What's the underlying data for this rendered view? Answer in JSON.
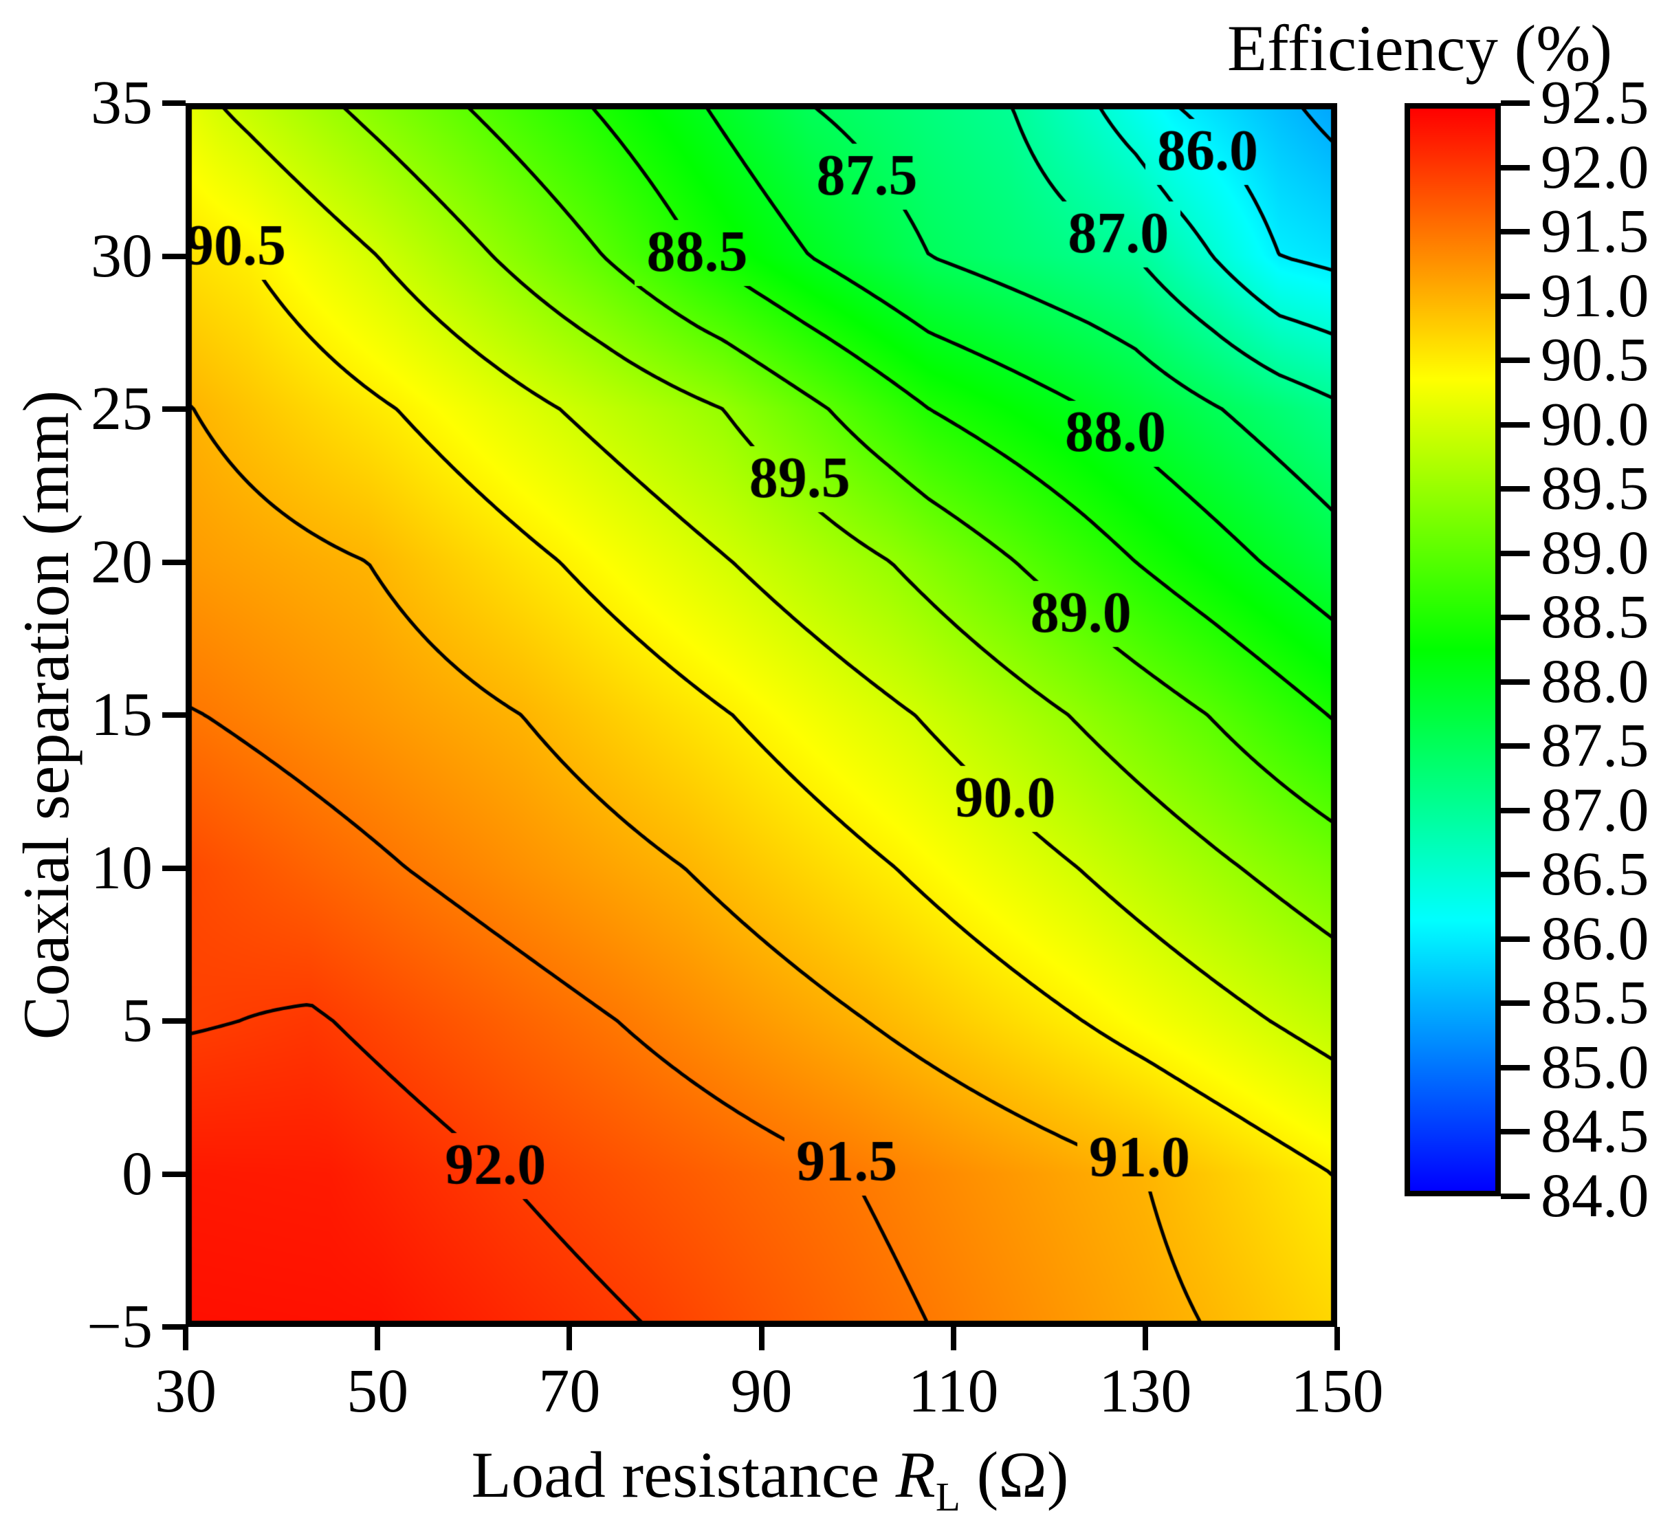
{
  "colorbar": {
    "title": "Efficiency (%)",
    "ticks": [
      "92.5",
      "92.0",
      "91.5",
      "91.0",
      "90.5",
      "90.0",
      "89.5",
      "89.0",
      "88.5",
      "88.0",
      "87.5",
      "87.0",
      "86.5",
      "86.0",
      "85.5",
      "85.0",
      "84.5",
      "84.0"
    ],
    "vmin": 84.0,
    "vmax": 92.5
  },
  "axes": {
    "x_label_prefix": "Load resistance ",
    "x_symbol": "R",
    "x_symbol_sub": "L",
    "x_label_suffix": " (Ω)",
    "y_label": "Coaxial separation (mm)",
    "x_ticks": [
      "30",
      "50",
      "70",
      "90",
      "110",
      "130",
      "150"
    ],
    "y_ticks": [
      "35",
      "30",
      "25",
      "20",
      "15",
      "10",
      "5",
      "0",
      "−5"
    ]
  },
  "chart_data": {
    "type": "contour",
    "title": "Efficiency (%)",
    "xlabel": "Load resistance RL (Ohm)",
    "ylabel": "Coaxial separation (mm)",
    "x_range": [
      30,
      150
    ],
    "y_range": [
      -5,
      35
    ],
    "colormap": "hsv-rainbow (blue 84 -> red 92.5)",
    "color_range": [
      84.0,
      92.5
    ],
    "contour_levels": [
      85.5,
      86.0,
      86.5,
      87.0,
      87.5,
      88.0,
      88.5,
      89.0,
      89.5,
      90.0,
      90.5,
      91.0,
      91.5,
      92.0
    ],
    "field_rows": [
      {
        "d": -5,
        "pts": [
          [
            30,
            92.38
          ],
          [
            50,
            92.36
          ],
          [
            78,
            92.0
          ],
          [
            107.5,
            91.5
          ],
          [
            136,
            91.0
          ],
          [
            150,
            90.71
          ]
        ]
      },
      {
        "d": 0,
        "pts": [
          [
            30,
            92.3
          ],
          [
            45,
            92.28
          ],
          [
            63,
            92.0
          ],
          [
            99.5,
            91.5
          ],
          [
            130,
            91.0
          ],
          [
            149.5,
            90.5
          ],
          [
            150,
            90.49
          ]
        ]
      },
      {
        "d": 5,
        "pts": [
          [
            30,
            91.97
          ],
          [
            43,
            92.04
          ],
          [
            75,
            91.5
          ],
          [
            101,
            91.0
          ],
          [
            123.5,
            90.5
          ],
          [
            143,
            90.0
          ],
          [
            150,
            89.82
          ]
        ]
      },
      {
        "d": 10,
        "pts": [
          [
            30,
            91.9
          ],
          [
            53,
            91.5
          ],
          [
            82,
            91.0
          ],
          [
            104,
            90.5
          ],
          [
            123,
            90.0
          ],
          [
            140,
            89.5
          ],
          [
            150,
            89.21
          ]
        ]
      },
      {
        "d": 15,
        "pts": [
          [
            30,
            91.52
          ],
          [
            32,
            91.5
          ],
          [
            65,
            91.0
          ],
          [
            87,
            90.5
          ],
          [
            106,
            90.0
          ],
          [
            122,
            89.5
          ],
          [
            136.5,
            89.0
          ],
          [
            149,
            88.5
          ],
          [
            150,
            88.46
          ]
        ]
      },
      {
        "d": 20,
        "pts": [
          [
            30,
            91.22
          ],
          [
            49,
            91.0
          ],
          [
            69,
            90.5
          ],
          [
            87,
            90.0
          ],
          [
            103.5,
            89.5
          ],
          [
            116.5,
            89.0
          ],
          [
            129,
            88.5
          ],
          [
            142,
            88.0
          ],
          [
            150,
            87.69
          ]
        ]
      },
      {
        "d": 25,
        "pts": [
          [
            30,
            91.02
          ],
          [
            52,
            90.5
          ],
          [
            69,
            90.0
          ],
          [
            86,
            89.5
          ],
          [
            97,
            89.0
          ],
          [
            107.5,
            88.5
          ],
          [
            124,
            88.0
          ],
          [
            138,
            87.5
          ],
          [
            150,
            87.07
          ]
        ]
      },
      {
        "d": 30,
        "pts": [
          [
            30,
            90.63
          ],
          [
            36.5,
            90.5
          ],
          [
            50,
            90.0
          ],
          [
            62,
            89.5
          ],
          [
            73.5,
            89.0
          ],
          [
            83.5,
            88.5
          ],
          [
            95,
            88.0
          ],
          [
            107.5,
            87.5
          ],
          [
            129,
            87.0
          ],
          [
            137,
            86.5
          ],
          [
            144,
            86.0
          ],
          [
            150,
            85.88
          ]
        ]
      },
      {
        "d": 35,
        "pts": [
          [
            30,
            90.19
          ],
          [
            33.5,
            90.0
          ],
          [
            46,
            89.5
          ],
          [
            59,
            89.0
          ],
          [
            72,
            88.5
          ],
          [
            84,
            88.0
          ],
          [
            95,
            87.5
          ],
          [
            116,
            87.0
          ],
          [
            125,
            86.5
          ],
          [
            133,
            86.0
          ],
          [
            146,
            85.5
          ],
          [
            150,
            85.35
          ]
        ]
      }
    ],
    "contour_labels": [
      {
        "text": "90.5",
        "R": 35.2,
        "d": 30.3
      },
      {
        "text": "87.5",
        "R": 101.0,
        "d": 32.6
      },
      {
        "text": "86.0",
        "R": 136.5,
        "d": 33.4
      },
      {
        "text": "88.5",
        "R": 83.3,
        "d": 30.1
      },
      {
        "text": "87.0",
        "R": 127.2,
        "d": 30.7
      },
      {
        "text": "88.0",
        "R": 126.9,
        "d": 24.2
      },
      {
        "text": "89.5",
        "R": 94.0,
        "d": 22.7
      },
      {
        "text": "89.0",
        "R": 123.3,
        "d": 18.3
      },
      {
        "text": "90.0",
        "R": 115.4,
        "d": 12.25
      },
      {
        "text": "92.0",
        "R": 62.3,
        "d": 0.25
      },
      {
        "text": "91.5",
        "R": 98.9,
        "d": 0.36
      },
      {
        "text": "91.0",
        "R": 129.4,
        "d": 0.5
      }
    ]
  }
}
